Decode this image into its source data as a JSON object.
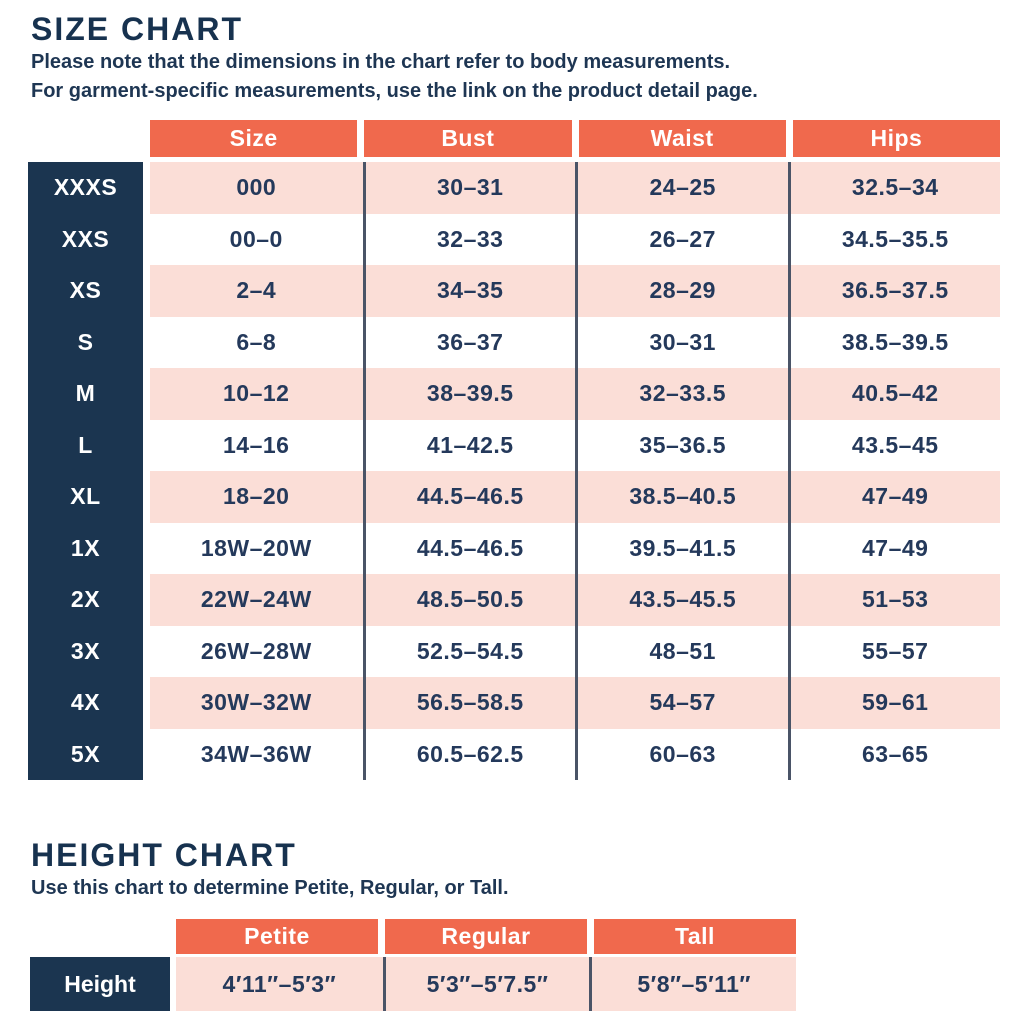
{
  "chart_data": [
    {
      "type": "table",
      "title": "SIZE CHART",
      "notes": [
        "Please note that the dimensions in the chart refer to body measurements.",
        "For garment-specific measurements, use the link on the product detail page."
      ],
      "columns": [
        "Size",
        "Bust",
        "Waist",
        "Hips"
      ],
      "row_labels": [
        "XXXS",
        "XXS",
        "XS",
        "S",
        "M",
        "L",
        "XL",
        "1X",
        "2X",
        "3X",
        "4X",
        "5X"
      ],
      "rows": [
        [
          "000",
          "30–31",
          "24–25",
          "32.5–34"
        ],
        [
          "00–0",
          "32–33",
          "26–27",
          "34.5–35.5"
        ],
        [
          "2–4",
          "34–35",
          "28–29",
          "36.5–37.5"
        ],
        [
          "6–8",
          "36–37",
          "30–31",
          "38.5–39.5"
        ],
        [
          "10–12",
          "38–39.5",
          "32–33.5",
          "40.5–42"
        ],
        [
          "14–16",
          "41–42.5",
          "35–36.5",
          "43.5–45"
        ],
        [
          "18–20",
          "44.5–46.5",
          "38.5–40.5",
          "47–49"
        ],
        [
          "18W–20W",
          "44.5–46.5",
          "39.5–41.5",
          "47–49"
        ],
        [
          "22W–24W",
          "48.5–50.5",
          "43.5–45.5",
          "51–53"
        ],
        [
          "26W–28W",
          "52.5–54.5",
          "48–51",
          "55–57"
        ],
        [
          "30W–32W",
          "56.5–58.5",
          "54–57",
          "59–61"
        ],
        [
          "34W–36W",
          "60.5–62.5",
          "60–63",
          "63–65"
        ]
      ]
    },
    {
      "type": "table",
      "title": "HEIGHT CHART",
      "notes": [
        "Use this chart to determine Petite, Regular, or Tall."
      ],
      "columns": [
        "Petite",
        "Regular",
        "Tall"
      ],
      "row_labels": [
        "Height"
      ],
      "rows": [
        [
          "4′11″–5′3″",
          "5′3″–5′7.5″",
          "5′8″–5′11″"
        ]
      ]
    }
  ],
  "colors": {
    "accent_orange": "#f0694d",
    "navy": "#1b3550",
    "row_pink": "#fbded7",
    "text_navy": "#24395b",
    "divider": "#4a5467"
  }
}
